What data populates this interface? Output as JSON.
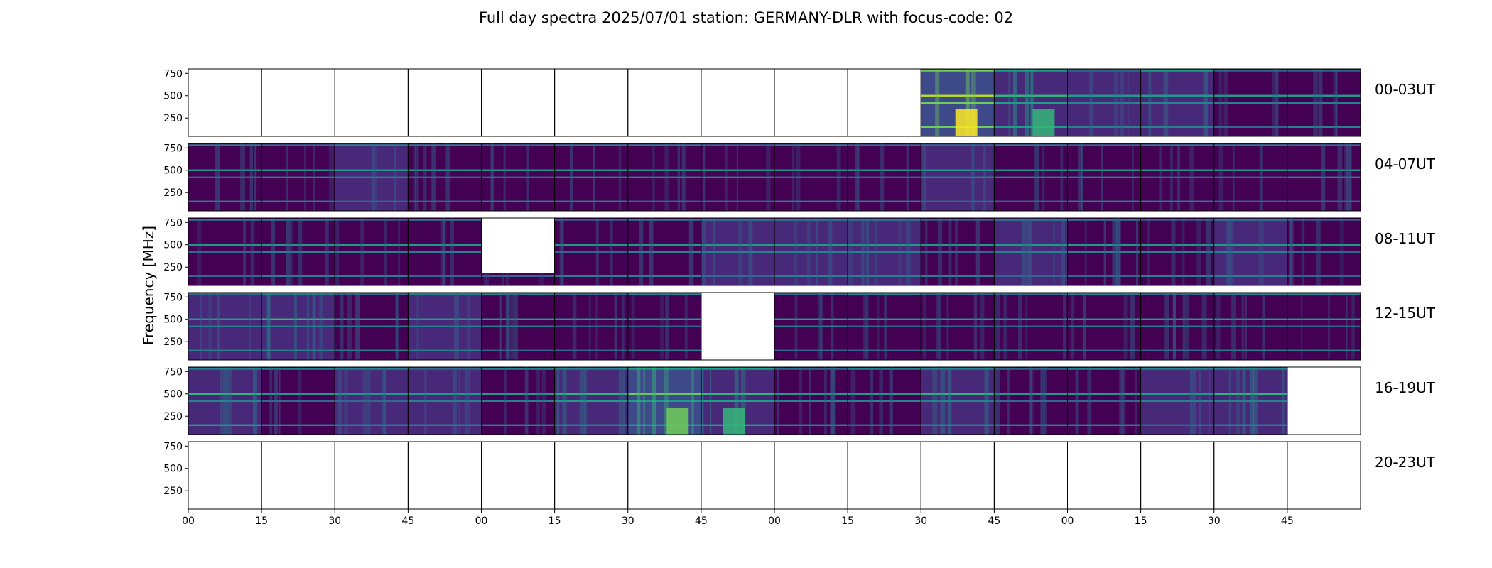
{
  "title": "Full day spectra 2025/07/01 station: GERMANY-DLR with focus-code: 02",
  "chart_data": {
    "type": "heatmap",
    "title": "Full day spectra 2025/07/01 station: GERMANY-DLR with focus-code: 02",
    "ylabel": "Frequency [MHz]",
    "xlabel": "",
    "colormap": "viridis",
    "colormap_colors": [
      "#440154",
      "#482878",
      "#3e4989",
      "#31688e",
      "#26828e",
      "#1f9e89",
      "#35b779",
      "#6ece58",
      "#b5de2b",
      "#fde725"
    ],
    "ylim": [
      45,
      800
    ],
    "y_ticks": [
      250,
      500,
      750
    ],
    "x_tick_labels": [
      "00",
      "15",
      "30",
      "45",
      "00",
      "15",
      "30",
      "45",
      "00",
      "15",
      "30",
      "45",
      "00",
      "15",
      "30",
      "45"
    ],
    "panels_per_row": 16,
    "panel_minutes": 15,
    "rows": [
      {
        "label": "00-03UT",
        "coverage": [
          "none",
          "none",
          "none",
          "none",
          "none",
          "none",
          "none",
          "none",
          "none",
          "none",
          "full",
          "full",
          "full",
          "full",
          "full",
          "full"
        ],
        "intensity": [
          0,
          0,
          0,
          0,
          0,
          0,
          0,
          0,
          0,
          0,
          0.75,
          0.45,
          0.2,
          0.3,
          0.15,
          0.15
        ]
      },
      {
        "label": "04-07UT",
        "coverage": [
          "full",
          "full",
          "full",
          "full",
          "full",
          "full",
          "full",
          "full",
          "full",
          "full",
          "full",
          "full",
          "full",
          "full",
          "full",
          "full"
        ],
        "intensity": [
          0.15,
          0.15,
          0.2,
          0.15,
          0.15,
          0.15,
          0.15,
          0.15,
          0.15,
          0.15,
          0.2,
          0.15,
          0.15,
          0.15,
          0.15,
          0.15
        ]
      },
      {
        "label": "08-11UT",
        "coverage": [
          "full",
          "full",
          "full",
          "full",
          "partial",
          "full",
          "full",
          "full",
          "full",
          "full",
          "full",
          "full",
          "full",
          "full",
          "full",
          "full"
        ],
        "intensity": [
          0.15,
          0.15,
          0.15,
          0.15,
          0.1,
          0.15,
          0.15,
          0.2,
          0.25,
          0.2,
          0.15,
          0.2,
          0.15,
          0.15,
          0.25,
          0.15
        ]
      },
      {
        "label": "12-15UT",
        "coverage": [
          "full",
          "full",
          "full",
          "full",
          "full",
          "full",
          "full",
          "none",
          "full",
          "full",
          "full",
          "full",
          "full",
          "full",
          "full",
          "full"
        ],
        "intensity": [
          0.2,
          0.3,
          0.15,
          0.25,
          0.15,
          0.15,
          0.15,
          0,
          0.15,
          0.15,
          0.15,
          0.15,
          0.15,
          0.15,
          0.15,
          0.15
        ]
      },
      {
        "label": "16-19UT",
        "coverage": [
          "full",
          "full",
          "full",
          "full",
          "full",
          "full",
          "full",
          "full",
          "full",
          "full",
          "full",
          "full",
          "full",
          "full",
          "full",
          "none"
        ],
        "intensity": [
          0.3,
          0.15,
          0.2,
          0.2,
          0.15,
          0.35,
          0.55,
          0.45,
          0.15,
          0.15,
          0.3,
          0.15,
          0.15,
          0.2,
          0.3,
          0
        ]
      },
      {
        "label": "20-23UT",
        "coverage": [
          "none",
          "none",
          "none",
          "none",
          "none",
          "none",
          "none",
          "none",
          "none",
          "none",
          "none",
          "none",
          "none",
          "none",
          "none",
          "none"
        ],
        "intensity": [
          0,
          0,
          0,
          0,
          0,
          0,
          0,
          0,
          0,
          0,
          0,
          0,
          0,
          0,
          0,
          0
        ]
      }
    ]
  }
}
